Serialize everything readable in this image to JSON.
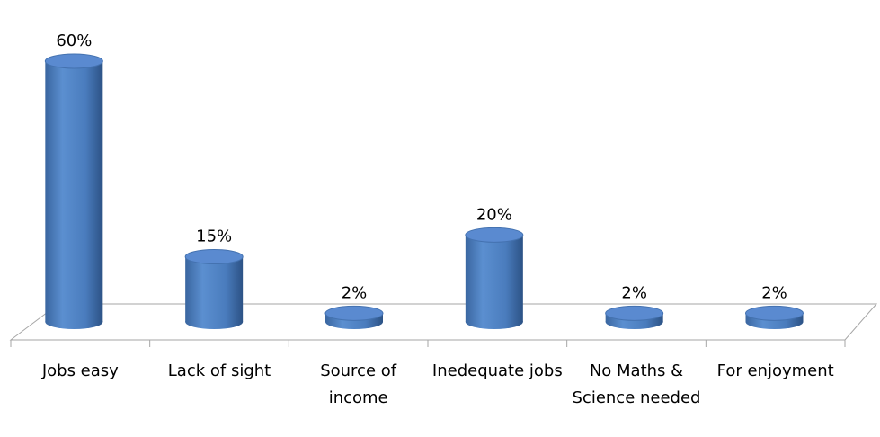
{
  "chart_data": {
    "type": "bar",
    "categories": [
      "Jobs easy",
      "Lack of sight",
      "Source of income",
      "Inedequate jobs",
      "No Maths & Science needed",
      "For enjoyment"
    ],
    "values": [
      60,
      15,
      2,
      20,
      2,
      2
    ],
    "value_labels": [
      "60%",
      "15%",
      "2%",
      "20%",
      "2%",
      "2%"
    ],
    "color": "#4f81bd"
  }
}
